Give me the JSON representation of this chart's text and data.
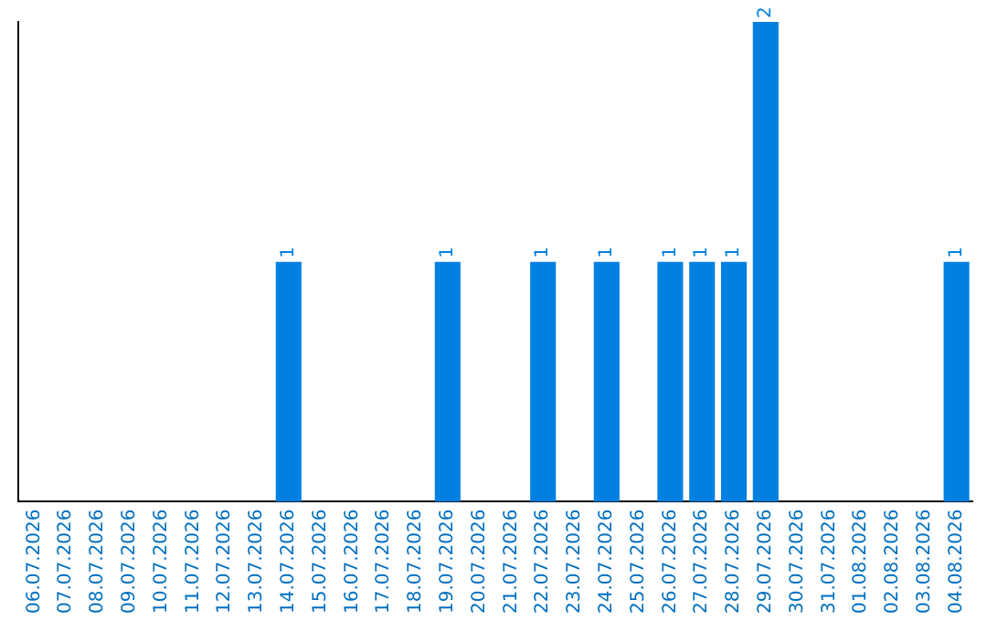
{
  "chart_data": {
    "type": "bar",
    "categories": [
      "06.07.2026",
      "07.07.2026",
      "08.07.2026",
      "09.07.2026",
      "10.07.2026",
      "11.07.2026",
      "12.07.2026",
      "13.07.2026",
      "14.07.2026",
      "15.07.2026",
      "16.07.2026",
      "17.07.2026",
      "18.07.2026",
      "19.07.2026",
      "20.07.2026",
      "21.07.2026",
      "22.07.2026",
      "23.07.2026",
      "24.07.2026",
      "25.07.2026",
      "26.07.2026",
      "27.07.2026",
      "28.07.2026",
      "29.07.2026",
      "30.07.2026",
      "31.07.2026",
      "01.08.2026",
      "02.08.2026",
      "03.08.2026",
      "04.08.2026"
    ],
    "values": [
      0,
      0,
      0,
      0,
      0,
      0,
      0,
      0,
      1,
      0,
      0,
      0,
      0,
      1,
      0,
      0,
      1,
      0,
      1,
      0,
      1,
      1,
      1,
      2,
      0,
      0,
      0,
      0,
      0,
      1
    ],
    "value_labels": [
      null,
      null,
      null,
      null,
      null,
      null,
      null,
      null,
      "1",
      null,
      null,
      null,
      null,
      "1",
      null,
      null,
      "1",
      null,
      "1",
      null,
      "1",
      "1",
      "1",
      "2",
      null,
      null,
      null,
      null,
      null,
      "1"
    ],
    "color": "#0080e0",
    "grid": false,
    "legend": false
  }
}
